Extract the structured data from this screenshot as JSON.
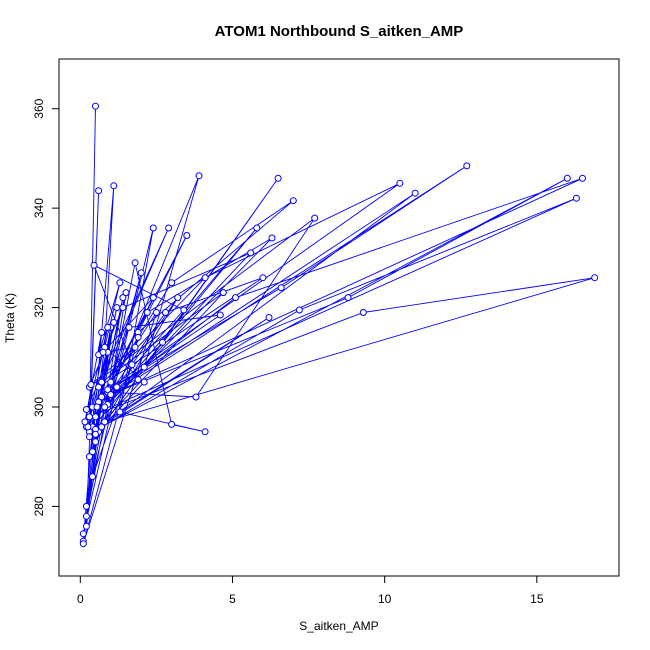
{
  "chart_data": {
    "type": "line",
    "title": "ATOM1 Northbound S_aitken_AMP",
    "xlabel": "S_aitken_AMP",
    "ylabel": "Theta (K)",
    "xlim": [
      -0.7,
      17.7
    ],
    "ylim": [
      266,
      370
    ],
    "x_ticks": [
      "0",
      "5",
      "10",
      "15"
    ],
    "y_ticks": [
      "280",
      "300",
      "320",
      "340",
      "360"
    ],
    "grid": false,
    "legend": "none",
    "series": [
      {
        "x": [
          0.5,
          0.3,
          0.6,
          0.2,
          0.9,
          0.1,
          0.4,
          1.0,
          0.2,
          0.7,
          1.4,
          0.3,
          0.8,
          1.1,
          0.2,
          0.6,
          1.5,
          0.9,
          2.0,
          0.5,
          1.2,
          0.1,
          0.9,
          1.8,
          3.0,
          4.1,
          1.3,
          2.4,
          0.4,
          1.7,
          3.2,
          0.6,
          2.7,
          6.5,
          2.1,
          3.9,
          0.8,
          5.8,
          0.3,
          1.0,
          3.0,
          7.0,
          1.9,
          3.5,
          0.7,
          2.2,
          6.3,
          0.5,
          1.6,
          4.6,
          0.9,
          3.8,
          7.7,
          0.3,
          1.4,
          5.6,
          0.2,
          2.8,
          6.0,
          0.6,
          4.1,
          10.5,
          0.9,
          6.6,
          12.7,
          0.4,
          5.1,
          16.5,
          1.0,
          8.8,
          16.0,
          0.7,
          7.2,
          16.3,
          0.3,
          9.3,
          16.9,
          0.8,
          6.2,
          0.5,
          11.0,
          0.2,
          2.9,
          0.7,
          4.7,
          0.3,
          1.2,
          0.6,
          2.5,
          0.1,
          1.9,
          0.4,
          1.1,
          0.25,
          0.9,
          0.15,
          0.7,
          0.6,
          1.3,
          0.8,
          2.1,
          0.5,
          0.35,
          1.8,
          0.75,
          2.4,
          0.55,
          3.4,
          0.45,
          1.9
        ],
        "y": [
          360.5,
          295.0,
          343.5,
          276.0,
          311.0,
          273.0,
          296.0,
          316.0,
          280.0,
          296.0,
          322.0,
          290.0,
          312.0,
          344.5,
          278.0,
          301.0,
          323.0,
          300.0,
          327.0,
          293.0,
          304.0,
          274.5,
          300.5,
          329.0,
          296.5,
          295.0,
          299.0,
          336.0,
          286.0,
          308.5,
          322.0,
          295.0,
          313.0,
          346.0,
          308.0,
          346.5,
          300.0,
          336.0,
          295.0,
          305.0,
          325.0,
          341.5,
          315.0,
          334.5,
          302.0,
          319.0,
          334.0,
          298.0,
          316.0,
          318.5,
          303.0,
          302.0,
          338.0,
          304.0,
          320.0,
          331.0,
          296.0,
          319.0,
          326.0,
          304.0,
          326.0,
          345.0,
          303.5,
          324.0,
          348.5,
          300.0,
          322.0,
          346.0,
          302.5,
          322.0,
          346.0,
          296.0,
          319.5,
          342.0,
          298.0,
          319.0,
          326.0,
          297.0,
          318.0,
          295.5,
          343.0,
          299.5,
          336.0,
          305.0,
          323.0,
          294.0,
          320.0,
          301.0,
          319.0,
          272.5,
          314.0,
          291.0,
          317.0,
          296.0,
          316.0,
          297.0,
          315.0,
          310.5,
          325.0,
          312.0,
          305.0,
          294.5,
          304.5,
          312.0,
          311.0,
          322.0,
          300.0,
          319.5,
          328.5,
          305.5
        ]
      }
    ]
  }
}
